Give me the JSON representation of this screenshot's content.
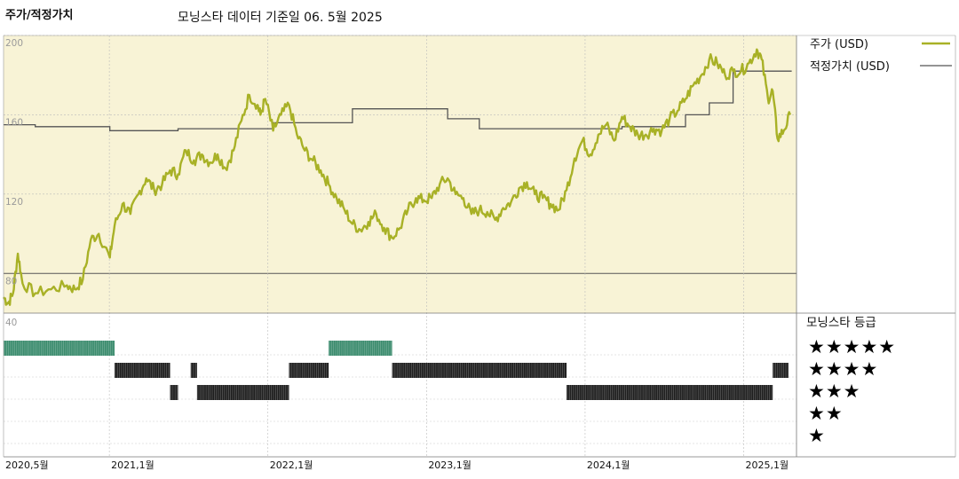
{
  "header": {
    "left_title": "주가/적정가치",
    "subtitle": "모닝스타 데이터 기준일 06. 5월 2025"
  },
  "legend": {
    "price_label": "주가 (USD)",
    "fair_label": "적정가치 (USD)"
  },
  "rating_panel": {
    "title": "모닝스타 등급",
    "levels": [
      "★★★★★",
      "★★★★",
      "★★★",
      "★★",
      "★"
    ]
  },
  "colors": {
    "price": "#a8b126",
    "fair_value": "#555555",
    "plot_bg": "#f8f3d6",
    "five_star": "#3c8c6e",
    "four_three_star": "#1e1e1e"
  },
  "chart_data": {
    "type": "line",
    "y_ticks": [
      200,
      160,
      120,
      80
    ],
    "y_range": [
      60,
      200
    ],
    "x_range": [
      "2020-05",
      "2025-05"
    ],
    "x_ticks": [
      {
        "label": "2020,5월",
        "t": 0
      },
      {
        "label": "2021,1월",
        "t": 0.667
      },
      {
        "label": "2022,1월",
        "t": 1.667
      },
      {
        "label": "2023,1월",
        "t": 2.667
      },
      {
        "label": "2024,1월",
        "t": 3.667
      },
      {
        "label": "2025,1월",
        "t": 4.667
      }
    ],
    "series": [
      {
        "name": "주가 (USD)",
        "points": [
          [
            0.0,
            68
          ],
          [
            0.03,
            65
          ],
          [
            0.06,
            70
          ],
          [
            0.09,
            90
          ],
          [
            0.12,
            75
          ],
          [
            0.2,
            70
          ],
          [
            0.3,
            72
          ],
          [
            0.4,
            74
          ],
          [
            0.45,
            72
          ],
          [
            0.5,
            77
          ],
          [
            0.55,
            97
          ],
          [
            0.6,
            100
          ],
          [
            0.67,
            88
          ],
          [
            0.7,
            104
          ],
          [
            0.75,
            115
          ],
          [
            0.8,
            110
          ],
          [
            0.85,
            120
          ],
          [
            0.9,
            128
          ],
          [
            0.95,
            122
          ],
          [
            1.0,
            125
          ],
          [
            1.05,
            132
          ],
          [
            1.1,
            130
          ],
          [
            1.15,
            142
          ],
          [
            1.2,
            137
          ],
          [
            1.25,
            140
          ],
          [
            1.3,
            136
          ],
          [
            1.35,
            140
          ],
          [
            1.4,
            133
          ],
          [
            1.45,
            142
          ],
          [
            1.5,
            157
          ],
          [
            1.55,
            170
          ],
          [
            1.6,
            165
          ],
          [
            1.62,
            160
          ],
          [
            1.65,
            168
          ],
          [
            1.7,
            152
          ],
          [
            1.75,
            160
          ],
          [
            1.8,
            165
          ],
          [
            1.85,
            150
          ],
          [
            1.9,
            142
          ],
          [
            1.95,
            137
          ],
          [
            2.0,
            132
          ],
          [
            2.05,
            125
          ],
          [
            2.1,
            118
          ],
          [
            2.15,
            112
          ],
          [
            2.2,
            105
          ],
          [
            2.25,
            102
          ],
          [
            2.3,
            106
          ],
          [
            2.35,
            110
          ],
          [
            2.4,
            103
          ],
          [
            2.45,
            98
          ],
          [
            2.5,
            103
          ],
          [
            2.55,
            112
          ],
          [
            2.6,
            118
          ],
          [
            2.65,
            117
          ],
          [
            2.7,
            118
          ],
          [
            2.75,
            125
          ],
          [
            2.8,
            128
          ],
          [
            2.85,
            120
          ],
          [
            2.9,
            118
          ],
          [
            2.95,
            110
          ],
          [
            3.0,
            112
          ],
          [
            3.05,
            111
          ],
          [
            3.1,
            107
          ],
          [
            3.15,
            113
          ],
          [
            3.2,
            116
          ],
          [
            3.25,
            123
          ],
          [
            3.3,
            126
          ],
          [
            3.35,
            120
          ],
          [
            3.4,
            118
          ],
          [
            3.45,
            115
          ],
          [
            3.5,
            112
          ],
          [
            3.55,
            122
          ],
          [
            3.6,
            138
          ],
          [
            3.65,
            147
          ],
          [
            3.7,
            140
          ],
          [
            3.75,
            150
          ],
          [
            3.8,
            155
          ],
          [
            3.85,
            147
          ],
          [
            3.9,
            159
          ],
          [
            3.95,
            154
          ],
          [
            4.0,
            150
          ],
          [
            4.05,
            150
          ],
          [
            4.1,
            153
          ],
          [
            4.15,
            152
          ],
          [
            4.2,
            158
          ],
          [
            4.25,
            162
          ],
          [
            4.3,
            168
          ],
          [
            4.35,
            175
          ],
          [
            4.4,
            180
          ],
          [
            4.45,
            188
          ],
          [
            4.5,
            186
          ],
          [
            4.55,
            180
          ],
          [
            4.6,
            182
          ],
          [
            4.65,
            182
          ],
          [
            4.7,
            186
          ],
          [
            4.75,
            193
          ],
          [
            4.78,
            188
          ],
          [
            4.82,
            168
          ],
          [
            4.85,
            172
          ],
          [
            4.88,
            148
          ],
          [
            4.92,
            152
          ],
          [
            4.96,
            160
          ]
        ]
      },
      {
        "name": "적정가치 (USD)",
        "steps": [
          [
            0.0,
            155
          ],
          [
            0.2,
            154
          ],
          [
            0.67,
            152
          ],
          [
            1.1,
            153
          ],
          [
            1.7,
            156
          ],
          [
            2.2,
            163
          ],
          [
            2.8,
            158
          ],
          [
            3.0,
            153
          ],
          [
            3.9,
            154
          ],
          [
            4.3,
            160
          ],
          [
            4.45,
            166
          ],
          [
            4.6,
            182
          ],
          [
            4.97,
            182
          ]
        ]
      }
    ],
    "ratings": [
      {
        "start": 0.0,
        "end": 0.7,
        "stars": 5
      },
      {
        "start": 0.7,
        "end": 1.05,
        "stars": 4
      },
      {
        "start": 1.05,
        "end": 1.1,
        "stars": 3
      },
      {
        "start": 1.18,
        "end": 1.22,
        "stars": 4
      },
      {
        "start": 1.22,
        "end": 1.8,
        "stars": 3
      },
      {
        "start": 1.8,
        "end": 2.05,
        "stars": 4
      },
      {
        "start": 2.05,
        "end": 2.45,
        "stars": 5
      },
      {
        "start": 2.45,
        "end": 3.55,
        "stars": 4
      },
      {
        "start": 3.55,
        "end": 4.85,
        "stars": 3
      },
      {
        "start": 4.85,
        "end": 4.95,
        "stars": 4
      }
    ],
    "grid": true
  }
}
